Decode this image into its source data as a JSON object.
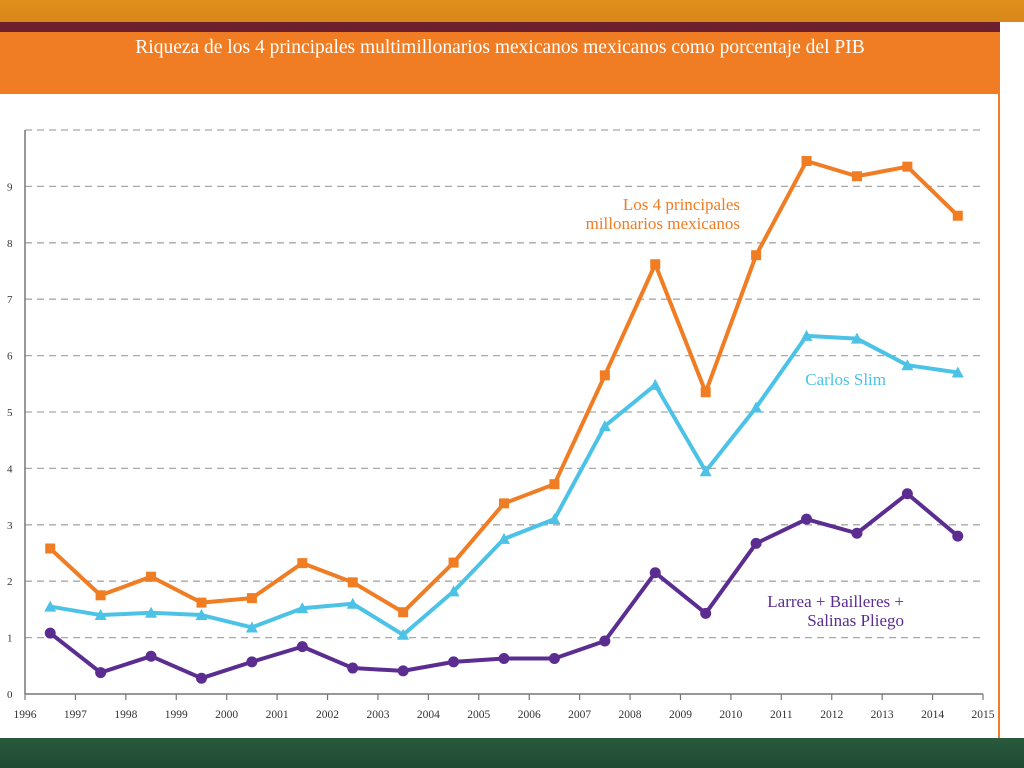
{
  "title": "Riqueza de los 4 principales multimillonarios mexicanos mexicanos como porcentaje del PIB",
  "chart_data": {
    "type": "line",
    "title": "Riqueza de los 4 principales multimillonarios mexicanos mexicanos como porcentaje del PIB",
    "xlabel": "",
    "ylabel": "",
    "xlim": [
      1996,
      2015
    ],
    "ylim": [
      0,
      10
    ],
    "x_ticks": [
      "1996",
      "1997",
      "1998",
      "1999",
      "2000",
      "2001",
      "2002",
      "2003",
      "2004",
      "2005",
      "2006",
      "2007",
      "2008",
      "2009",
      "2010",
      "2011",
      "2012",
      "2013",
      "2014",
      "2015"
    ],
    "y_ticks": [
      "0",
      "1",
      "2",
      "3",
      "4",
      "5",
      "6",
      "7",
      "8",
      "9"
    ],
    "grid": "horizontal-dashed",
    "x": [
      1996.5,
      1997.5,
      1998.5,
      1999.5,
      2000.5,
      2001.5,
      2002.5,
      2003.5,
      2004.5,
      2005.5,
      2006.5,
      2007.5,
      2008.5,
      2009.5,
      2010.5,
      2011.5,
      2012.5,
      2013.5,
      2014.5
    ],
    "series": [
      {
        "name": "Los 4 principales millonarios mexicanos",
        "label_lines": [
          "Los 4 principales",
          "millonarios mexicanos"
        ],
        "color": "#f07c23",
        "marker": "square",
        "values": [
          2.58,
          1.75,
          2.08,
          1.62,
          1.7,
          2.32,
          1.98,
          1.45,
          2.33,
          3.38,
          3.72,
          5.65,
          7.62,
          5.35,
          7.78,
          9.45,
          9.18,
          9.35,
          8.48
        ]
      },
      {
        "name": "Carlos Slim",
        "label_lines": [
          "Carlos Slim"
        ],
        "color": "#4cc3e6",
        "marker": "triangle",
        "values": [
          1.55,
          1.4,
          1.44,
          1.4,
          1.18,
          1.52,
          1.6,
          1.05,
          1.82,
          2.75,
          3.1,
          4.75,
          5.48,
          3.95,
          5.08,
          6.35,
          6.3,
          5.83,
          5.7
        ]
      },
      {
        "name": "Larrea + Bailleres + Salinas Pliego",
        "label_lines": [
          "Larrea + Bailleres +",
          "Salinas Pliego"
        ],
        "color": "#5b2d91",
        "marker": "circle",
        "values": [
          1.08,
          0.38,
          0.67,
          0.28,
          0.57,
          0.84,
          0.46,
          0.41,
          0.57,
          0.63,
          0.63,
          0.94,
          2.15,
          1.43,
          2.67,
          3.1,
          2.85,
          3.55,
          2.8
        ]
      }
    ]
  }
}
